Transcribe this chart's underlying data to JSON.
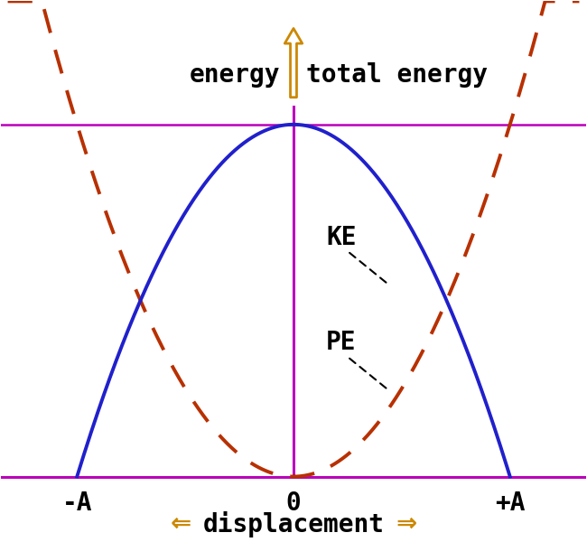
{
  "xlim": [
    -1.35,
    1.35
  ],
  "ylim": [
    -0.18,
    1.35
  ],
  "bg_color": "#ffffff",
  "ke_color": "#2020cc",
  "pe_color": "#b83000",
  "axis_color": "#bb00bb",
  "arrow_color": "#cc8800",
  "label_ke": "KE",
  "label_pe": "PE",
  "label_energy": "energy",
  "label_total": "total energy",
  "label_minus_a": "-A",
  "label_zero": "0",
  "label_plus_a": "+A",
  "total_energy_level": 1.0,
  "amplitude": 1.0,
  "ke_lw": 2.8,
  "pe_lw": 2.8,
  "axis_lw": 2.2,
  "total_lw": 1.8
}
